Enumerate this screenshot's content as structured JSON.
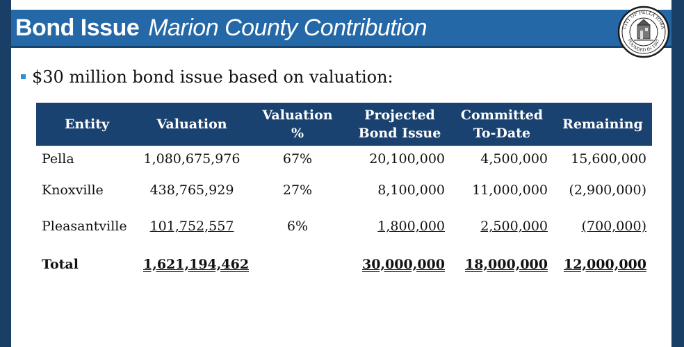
{
  "title": {
    "bold": "Bond Issue",
    "italic": "Marion County Contribution"
  },
  "seal": {
    "text_top": "CITY OF PELLA IOWA",
    "text_bottom": "FOUNDED IN 1847"
  },
  "bullet": "$30 million bond issue based on valuation:",
  "colors": {
    "title_bar": "#2468a8",
    "header": "#1a4270",
    "frame": "#1a3f66",
    "bullet": "#2b8fd6"
  },
  "table": {
    "headers": [
      "Entity",
      "Valuation",
      "Valuation %",
      "Projected Bond Issue",
      "Committed To-Date",
      "Remaining"
    ],
    "rows": [
      [
        "Pella",
        "1,080,675,976",
        "67%",
        "20,100,000",
        "4,500,000",
        "15,600,000"
      ],
      [
        "Knoxville",
        "438,765,929",
        "27%",
        "8,100,000",
        "11,000,000",
        "(2,900,000)"
      ],
      [
        "Pleasantville",
        "101,752,557",
        "6%",
        "1,800,000",
        "2,500,000",
        "(700,000)"
      ]
    ],
    "total": [
      "Total",
      "1,621,194,462",
      "",
      "30,000,000",
      "18,000,000",
      "12,000,000"
    ]
  }
}
